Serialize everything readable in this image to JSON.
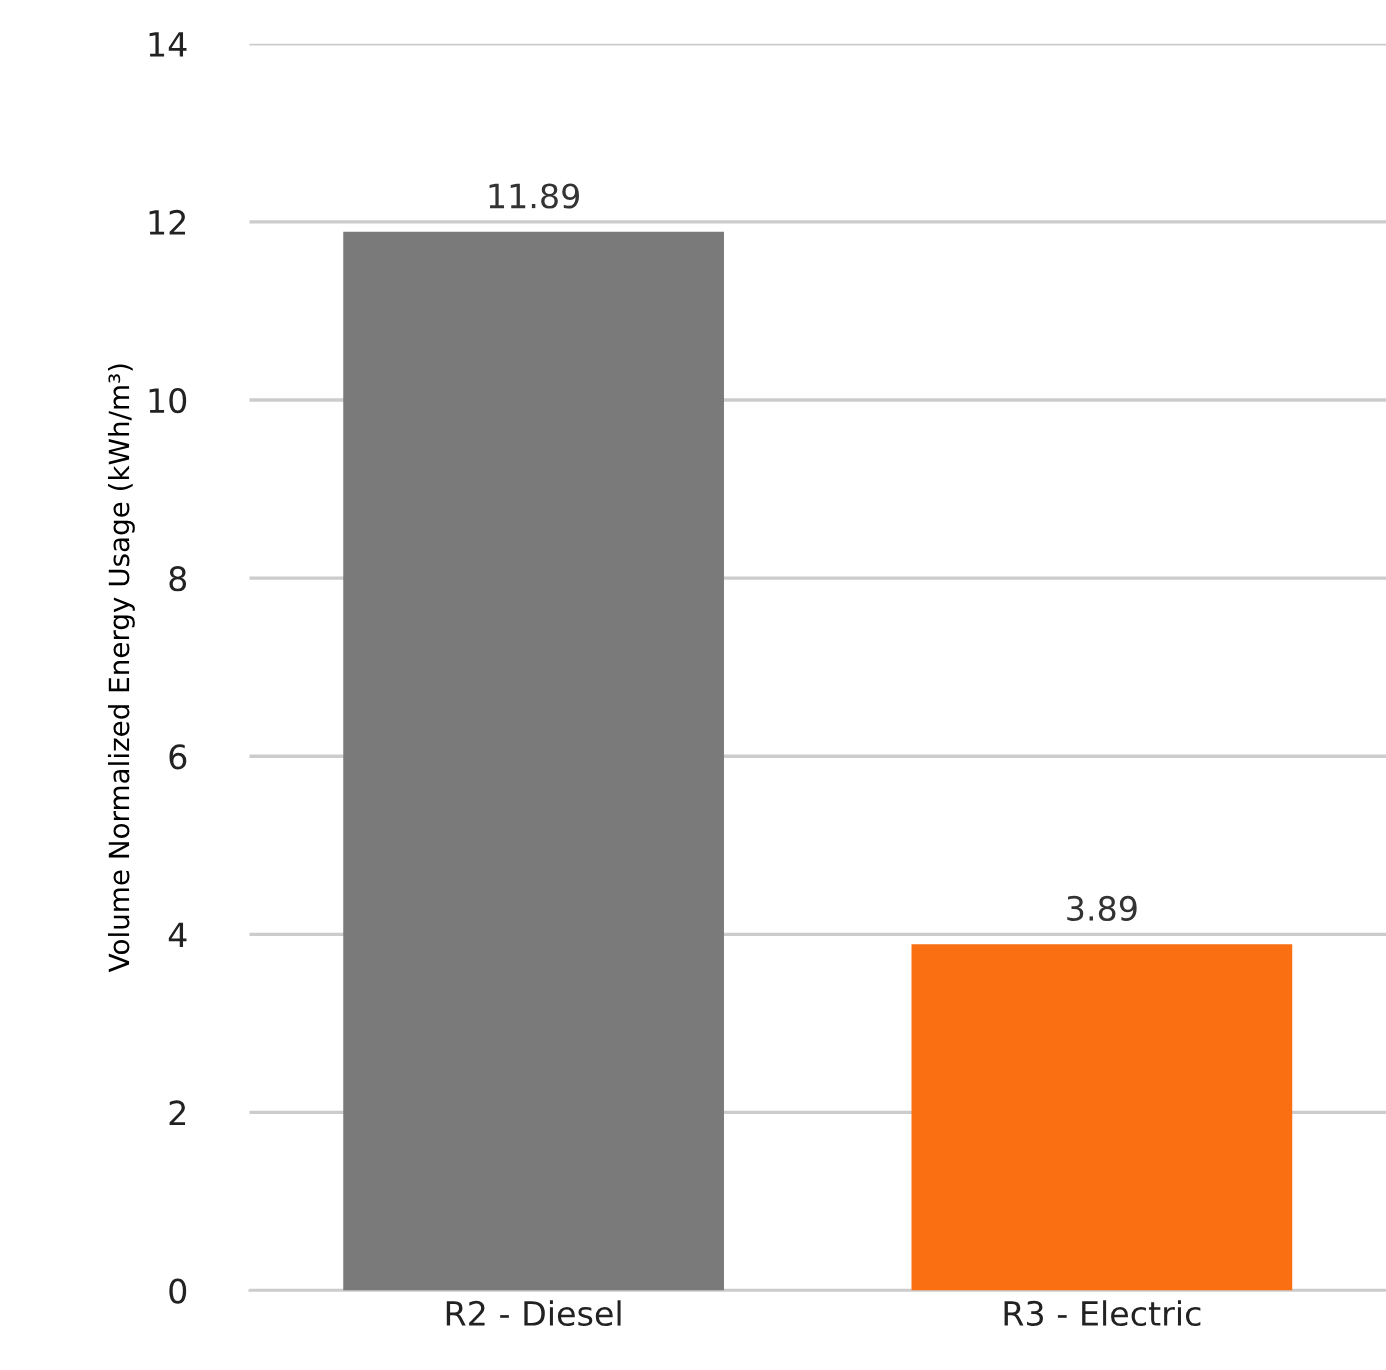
{
  "chart_data": {
    "type": "bar",
    "ylabel": "Volume Normalized Energy Usage (kWh/m³)",
    "categories": [
      "R2 - Diesel",
      "R3 - Electric"
    ],
    "values": [
      11.89,
      3.89
    ],
    "colors": [
      "#7a7a7a",
      "#f96f12"
    ],
    "ylim": [
      0,
      14
    ],
    "yticks": [
      0,
      2,
      4,
      6,
      8,
      10,
      12,
      14
    ],
    "grid": "y",
    "data_labels": true
  }
}
